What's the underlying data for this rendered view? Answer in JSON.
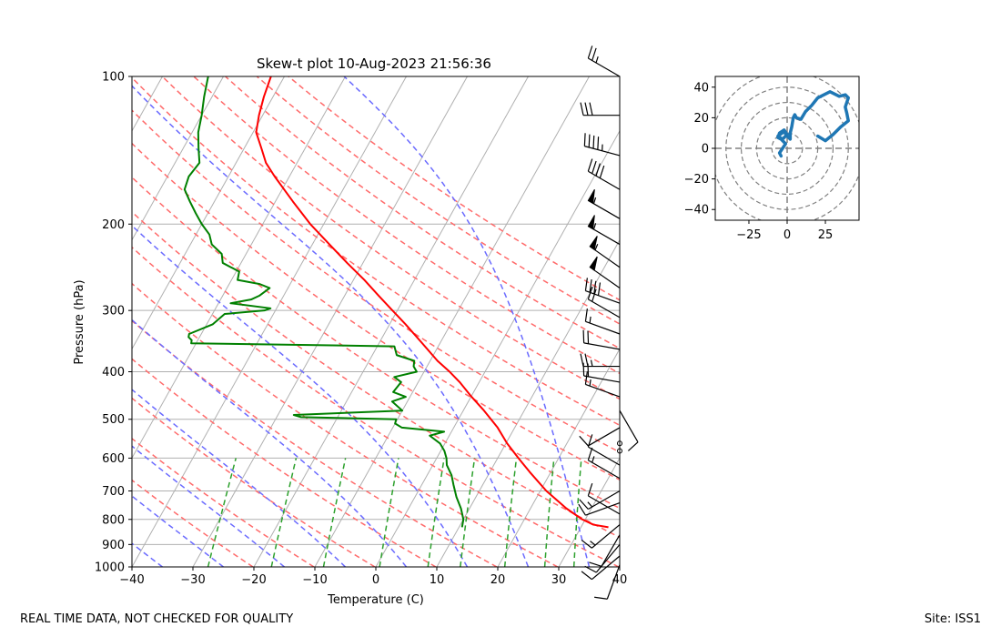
{
  "chart_data": [
    {
      "type": "line",
      "subtype": "skew-t log-p",
      "title": "Skew-t plot 10-Aug-2023 21:56:36",
      "xlabel": "Temperature (C)",
      "ylabel": "Pressure (hPa)",
      "xlim": [
        -40,
        40
      ],
      "ylim": [
        1000,
        100
      ],
      "y_scale": "log",
      "skew_deg_per_log10p": 45,
      "x_ticks": [
        -40,
        -30,
        -20,
        -10,
        0,
        10,
        20,
        30,
        40
      ],
      "x_tick_labels": [
        "−40",
        "−30",
        "−20",
        "−10",
        "0",
        "10",
        "20",
        "30",
        "40"
      ],
      "y_ticks": [
        1000,
        900,
        800,
        700,
        600,
        500,
        400,
        300,
        200,
        100
      ],
      "y_tick_labels": [
        "1000",
        "900",
        "800",
        "700",
        "600",
        "500",
        "400",
        "300",
        "200",
        "100"
      ],
      "colors": {
        "temperature": "#ff0000",
        "dewpoint": "#008000",
        "dry_adiabat": "#ff6b6b",
        "moist_adiabat": "#6b6bff",
        "mixing_ratio": "#2ca02c",
        "isotherm": "#b0b0b0",
        "isobar": "#b0b0b0",
        "barbs": "#000000"
      },
      "series": [
        {
          "name": "Temperature",
          "pressure": [
            830,
            820,
            800,
            760,
            700,
            640,
            600,
            560,
            520,
            480,
            450,
            420,
            400,
            380,
            350,
            320,
            300,
            280,
            260,
            240,
            220,
            200,
            180,
            160,
            150,
            140,
            130,
            120,
            110,
            100
          ],
          "values": [
            34.5,
            31.8,
            29.5,
            25.9,
            21.0,
            16.5,
            13.4,
            10.2,
            7.2,
            3.4,
            0.1,
            -3.2,
            -5.8,
            -8.8,
            -12.9,
            -17.4,
            -20.8,
            -24.4,
            -28.2,
            -32.6,
            -37.2,
            -42.2,
            -47.1,
            -52.4,
            -55.1,
            -57.2,
            -59.5,
            -60.6,
            -61.5,
            -62.2
          ]
        },
        {
          "name": "Dewpoint",
          "pressure": [
            830,
            800,
            760,
            720,
            680,
            650,
            620,
            600,
            580,
            560,
            540,
            530,
            520,
            510,
            500,
            495,
            490,
            480,
            460,
            450,
            440,
            420,
            410,
            400,
            390,
            380,
            370,
            355,
            350,
            345,
            340,
            335,
            320,
            305,
            300,
            297,
            290,
            285,
            280,
            270,
            265,
            260,
            250,
            240,
            230,
            220,
            210,
            200,
            190,
            180,
            170,
            160,
            150,
            140,
            130,
            120,
            110,
            100
          ],
          "values": [
            10.5,
            10.0,
            8.6,
            6.8,
            5.2,
            4.0,
            2.3,
            1.6,
            0.6,
            -0.8,
            -3.2,
            -1.2,
            -8.5,
            -10.0,
            -10.2,
            -26.0,
            -27.4,
            -10.0,
            -12.5,
            -10.7,
            -13.2,
            -12.8,
            -14.4,
            -11.2,
            -12.2,
            -12.6,
            -16.0,
            -17.2,
            -50.8,
            -51.0,
            -51.8,
            -52.0,
            -49.0,
            -48.0,
            -41.8,
            -41.0,
            -48.0,
            -45.0,
            -44.0,
            -43.0,
            -45.0,
            -49.0,
            -49.5,
            -53.0,
            -54.0,
            -56.5,
            -57.8,
            -60.0,
            -62.0,
            -64.0,
            -66.0,
            -66.5,
            -66.0,
            -67.5,
            -69.0,
            -70.0,
            -71.3,
            -72.5
          ]
        }
      ],
      "reference_lines": {
        "isotherms_C": [
          -100,
          -90,
          -80,
          -70,
          -60,
          -50,
          -40,
          -30,
          -20,
          -10,
          0,
          10,
          20,
          30,
          40
        ],
        "dry_adiabats_theta_K": [
          253,
          263,
          273,
          283,
          293,
          303,
          313,
          323,
          333,
          343,
          353,
          363,
          373,
          383,
          393,
          403,
          413
        ],
        "moist_adiabats_surface_C": [
          -35,
          -25,
          -15,
          -5,
          5,
          15,
          25,
          35
        ],
        "mixing_ratio_g_per_kg": [
          0.4,
          1,
          2,
          4,
          7,
          10,
          16,
          24,
          32
        ]
      },
      "wind_barbs": {
        "units": "kt",
        "note": "barbs plotted along right axis",
        "levels": [
          {
            "p": 100,
            "speed": 25,
            "dir_deg": 300
          },
          {
            "p": 120,
            "speed": 30,
            "dir_deg": 270
          },
          {
            "p": 145,
            "speed": 45,
            "dir_deg": 285
          },
          {
            "p": 170,
            "speed": 40,
            "dir_deg": 300
          },
          {
            "p": 195,
            "speed": 55,
            "dir_deg": 300
          },
          {
            "p": 220,
            "speed": 55,
            "dir_deg": 300
          },
          {
            "p": 245,
            "speed": 55,
            "dir_deg": 305
          },
          {
            "p": 270,
            "speed": 50,
            "dir_deg": 305
          },
          {
            "p": 290,
            "speed": 40,
            "dir_deg": 290
          },
          {
            "p": 310,
            "speed": 20,
            "dir_deg": 300
          },
          {
            "p": 335,
            "speed": 15,
            "dir_deg": 290
          },
          {
            "p": 360,
            "speed": 20,
            "dir_deg": 280
          },
          {
            "p": 390,
            "speed": 25,
            "dir_deg": 270
          },
          {
            "p": 420,
            "speed": 20,
            "dir_deg": 280
          },
          {
            "p": 450,
            "speed": 15,
            "dir_deg": 290
          },
          {
            "p": 480,
            "speed": 10,
            "dir_deg": 150
          },
          {
            "p": 520,
            "speed": 10,
            "dir_deg": 240
          },
          {
            "p": 560,
            "speed": 0,
            "dir_deg": 0
          },
          {
            "p": 580,
            "speed": 0,
            "dir_deg": 0
          },
          {
            "p": 620,
            "speed": 10,
            "dir_deg": 300
          },
          {
            "p": 660,
            "speed": 15,
            "dir_deg": 300
          },
          {
            "p": 700,
            "speed": 15,
            "dir_deg": 240
          },
          {
            "p": 740,
            "speed": 10,
            "dir_deg": 250
          },
          {
            "p": 780,
            "speed": 10,
            "dir_deg": 300
          },
          {
            "p": 820,
            "speed": 15,
            "dir_deg": 230
          },
          {
            "p": 860,
            "speed": 10,
            "dir_deg": 210
          },
          {
            "p": 900,
            "speed": 10,
            "dir_deg": 220
          },
          {
            "p": 950,
            "speed": 10,
            "dir_deg": 230
          },
          {
            "p": 990,
            "speed": 10,
            "dir_deg": 200
          }
        ]
      }
    },
    {
      "type": "line",
      "subtype": "hodograph",
      "title": "",
      "xlim": [
        -47,
        47
      ],
      "ylim": [
        -47,
        47
      ],
      "x_ticks": [
        -25,
        0,
        25
      ],
      "x_tick_labels": [
        "−25",
        "0",
        "25"
      ],
      "y_ticks": [
        -40,
        -20,
        0,
        20,
        40
      ],
      "y_tick_labels": [
        "−40",
        "−20",
        "0",
        "20",
        "40"
      ],
      "ring_radii": [
        10,
        20,
        30,
        40,
        50
      ],
      "line_color": "#1f77b4",
      "grid_color": "#808080",
      "series": [
        {
          "name": "Hodograph",
          "u": [
            -4,
            -5,
            -3,
            -1,
            -4,
            -6,
            -5,
            -2,
            0,
            -3,
            -6,
            -2,
            0,
            2,
            2,
            3,
            4,
            5,
            6,
            9,
            12,
            16,
            20,
            24,
            28,
            30,
            34,
            38,
            40,
            38,
            39,
            40,
            35,
            30,
            25,
            20
          ],
          "v": [
            -5,
            -3,
            0,
            3,
            6,
            7,
            10,
            12,
            9,
            6,
            8,
            11,
            8,
            6,
            10,
            14,
            20,
            22,
            20,
            19,
            24,
            28,
            33,
            35,
            37,
            36,
            34,
            35,
            33,
            27,
            23,
            18,
            14,
            9,
            5,
            8
          ]
        }
      ]
    }
  ],
  "footer": {
    "left": "REAL TIME DATA, NOT CHECKED FOR QUALITY",
    "right": "Site: ISS1"
  }
}
